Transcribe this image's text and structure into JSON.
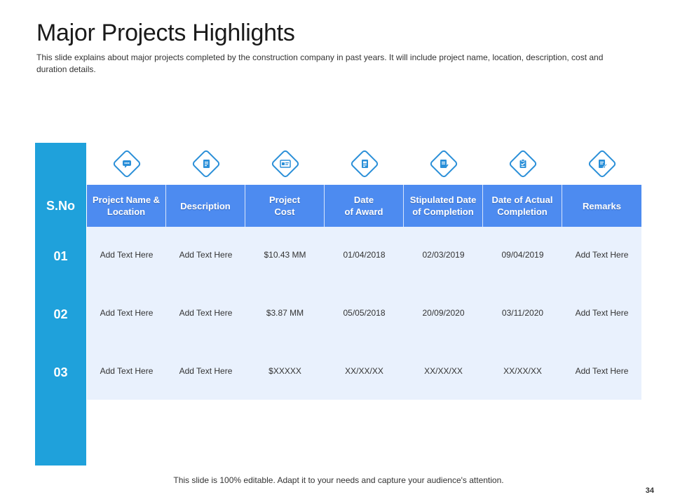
{
  "slide": {
    "title": "Major Projects Highlights",
    "subtitle": "This slide explains about major projects completed by the construction company in past years. It will include project name, location, description, cost and duration details.",
    "footer": "This slide is 100% editable. Adapt it to your needs and capture your audience's attention.",
    "page_number": "34"
  },
  "table": {
    "sno_header": "S.No",
    "icons": [
      "chat-icon",
      "document-icon",
      "certificate-icon",
      "calendar-icon",
      "checklist-icon",
      "clipboard-icon",
      "edit-document-icon"
    ],
    "headers": [
      [
        "Project Name &",
        "Location"
      ],
      [
        "Description"
      ],
      [
        "Project",
        "Cost"
      ],
      [
        "Date",
        "of Award"
      ],
      [
        "Stipulated Date",
        "of Completion"
      ],
      [
        "Date of Actual",
        "Completion"
      ],
      [
        "Remarks"
      ]
    ],
    "rows": [
      {
        "sno": "01",
        "cells": [
          "Add Text Here",
          "Add Text Here",
          "$10.43 MM",
          "01/04/2018",
          "02/03/2019",
          "09/04/2019",
          "Add Text Here"
        ]
      },
      {
        "sno": "02",
        "cells": [
          "Add Text Here",
          "Add Text Here",
          "$3.87 MM",
          "05/05/2018",
          "20/09/2020",
          "03/11/2020",
          "Add Text Here"
        ]
      },
      {
        "sno": "03",
        "cells": [
          "Add Text Here",
          "Add Text Here",
          "$XXXXX",
          "XX/XX/XX",
          "XX/XX/XX",
          "XX/XX/XX",
          "Add Text Here"
        ]
      }
    ]
  },
  "colors": {
    "sno_column": "#1fa1db",
    "header_row": "#4d8bf0",
    "body_background": "#e9f1fd",
    "icon_stroke": "#2a8fd8"
  }
}
